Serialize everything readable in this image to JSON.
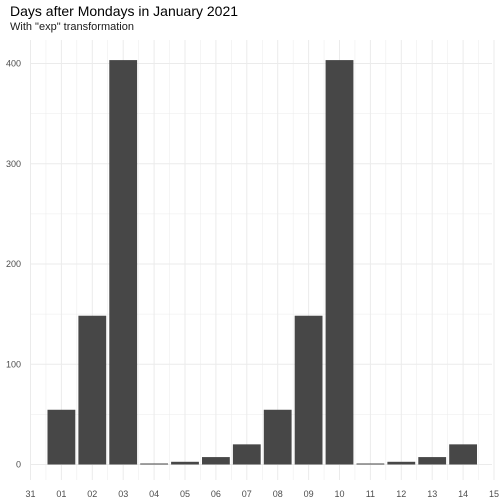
{
  "chart_data": {
    "type": "bar",
    "title": "Days after Mondays in January 2021",
    "subtitle": "With \"exp\" transformation",
    "xlabel": "",
    "ylabel": "",
    "x_ticks": [
      "31",
      "01",
      "02",
      "03",
      "04",
      "05",
      "06",
      "07",
      "08",
      "09",
      "10",
      "11",
      "12",
      "13",
      "14",
      "15"
    ],
    "categories": [
      "01",
      "02",
      "03",
      "04",
      "05",
      "06",
      "07",
      "08",
      "09",
      "10",
      "11",
      "12",
      "13",
      "14"
    ],
    "values": [
      54.6,
      148.4,
      403.4,
      1.0,
      2.7,
      7.4,
      20.1,
      54.6,
      148.4,
      403.4,
      1.0,
      2.7,
      7.4,
      20.1
    ],
    "y_ticks": [
      0,
      100,
      200,
      300,
      400
    ],
    "ylim": [
      0,
      423
    ],
    "grid": true,
    "legend": "none",
    "bar_color": "#474747",
    "grid_color": "#ebebeb",
    "background": "#ffffff"
  }
}
